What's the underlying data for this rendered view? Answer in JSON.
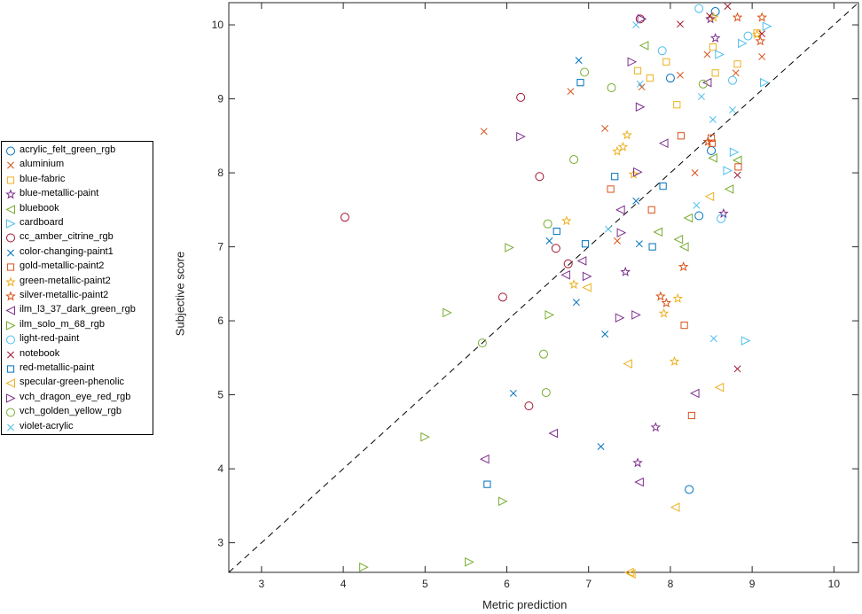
{
  "chart_data": {
    "type": "scatter",
    "xlabel": "Metric prediction",
    "ylabel": "Subjective score",
    "xlim": [
      2.6,
      10.3
    ],
    "ylim": [
      2.6,
      10.3
    ],
    "xticks": [
      "3",
      "4",
      "5",
      "6",
      "7",
      "8",
      "9",
      "10"
    ],
    "yticks": [
      "3",
      "4",
      "5",
      "6",
      "7",
      "8",
      "9",
      "10"
    ],
    "reference_line": "identity (dashed)",
    "legend_position": "left",
    "grid": false,
    "series": [
      {
        "name": "acrylic_felt_green_rgb",
        "marker": "circle",
        "color": "#0072BD",
        "x": [
          8.55,
          8.35,
          8.5,
          8.23,
          8.0
        ],
        "y": [
          10.18,
          7.42,
          8.3,
          3.72,
          9.28
        ]
      },
      {
        "name": "aluminium",
        "marker": "x",
        "color": "#D95319",
        "x": [
          5.72,
          6.78,
          7.2,
          7.35,
          7.65,
          8.12,
          8.3,
          8.8,
          8.45,
          9.12
        ],
        "y": [
          8.56,
          9.1,
          8.6,
          7.08,
          9.16,
          9.32,
          8.0,
          9.35,
          9.6,
          9.57
        ]
      },
      {
        "name": "blue-fabric",
        "marker": "square",
        "color": "#EDB120",
        "x": [
          7.6,
          7.75,
          7.95,
          8.08,
          8.52,
          8.55,
          8.82,
          9.06
        ],
        "y": [
          9.38,
          9.28,
          9.5,
          8.92,
          9.7,
          9.35,
          9.47,
          9.89
        ]
      },
      {
        "name": "blue-metallic-paint",
        "marker": "star",
        "color": "#7E2F8E",
        "x": [
          7.45,
          7.6,
          7.82,
          8.65,
          8.49,
          8.55
        ],
        "y": [
          6.66,
          4.08,
          4.56,
          7.45,
          10.08,
          9.82
        ]
      },
      {
        "name": "bluebook",
        "marker": "triangle-left",
        "color": "#77AC30",
        "x": [
          7.68,
          7.85,
          8.1,
          8.17,
          8.22,
          8.52,
          8.72,
          8.82
        ],
        "y": [
          9.72,
          7.2,
          7.1,
          7.0,
          7.39,
          8.2,
          7.78,
          8.17
        ]
      },
      {
        "name": "cardboard",
        "marker": "triangle-right",
        "color": "#4DBEEE",
        "x": [
          8.6,
          8.78,
          8.92,
          8.7,
          9.15,
          8.88,
          9.18
        ],
        "y": [
          9.6,
          8.28,
          5.73,
          8.03,
          9.22,
          9.75,
          9.98
        ]
      },
      {
        "name": "cc_amber_citrine_rgb",
        "marker": "circle",
        "color": "#A2142F",
        "x": [
          4.02,
          6.17,
          6.4,
          5.95,
          6.27,
          6.6,
          6.75,
          7.63
        ],
        "y": [
          7.4,
          9.02,
          7.95,
          6.32,
          4.85,
          6.98,
          6.77,
          10.08
        ]
      },
      {
        "name": "color-changing-paint1",
        "marker": "x",
        "color": "#0072BD",
        "x": [
          6.88,
          6.52,
          6.85,
          6.08,
          7.2,
          7.15,
          7.58,
          7.62
        ],
        "y": [
          9.52,
          7.08,
          6.25,
          5.02,
          5.82,
          4.3,
          7.62,
          7.04
        ]
      },
      {
        "name": "gold-metallic-paint2",
        "marker": "square",
        "color": "#D95319",
        "x": [
          7.27,
          7.77,
          8.13,
          8.17,
          8.26,
          8.5,
          8.51,
          8.83
        ],
        "y": [
          7.78,
          7.5,
          8.5,
          5.94,
          4.72,
          8.47,
          8.4,
          8.08
        ]
      },
      {
        "name": "green-metallic-paint2",
        "marker": "star",
        "color": "#EDB120",
        "x": [
          6.73,
          6.82,
          7.35,
          7.42,
          7.47,
          7.55,
          7.92,
          8.05,
          8.09,
          8.53,
          9.06
        ],
        "y": [
          7.35,
          6.49,
          8.29,
          8.35,
          8.51,
          7.98,
          6.1,
          5.45,
          6.3,
          10.1,
          9.87
        ]
      },
      {
        "name": "silver-metallic-paint2",
        "marker": "star",
        "color": "#D95319",
        "x": [
          7.88,
          7.95,
          8.16,
          8.46,
          8.82,
          9.12,
          9.1
        ],
        "y": [
          6.33,
          6.24,
          6.73,
          8.42,
          10.1,
          10.1,
          9.78
        ]
      },
      {
        "name": "ilm_l3_37_dark_green_rgb",
        "marker": "triangle-left",
        "color": "#7E2F8E",
        "x": [
          5.73,
          6.57,
          6.72,
          6.92,
          7.39,
          7.62,
          7.92,
          8.3,
          8.45
        ],
        "y": [
          4.13,
          4.48,
          6.62,
          6.81,
          7.5,
          3.82,
          8.4,
          5.02,
          9.22
        ]
      },
      {
        "name": "ilm_solo_m_68_rgb",
        "marker": "triangle-right",
        "color": "#77AC30",
        "x": [
          4.25,
          5.0,
          5.27,
          5.54,
          5.95,
          6.03,
          6.52
        ],
        "y": [
          2.67,
          4.43,
          6.11,
          2.74,
          3.56,
          6.99,
          6.08
        ]
      },
      {
        "name": "light-red-paint",
        "marker": "circle",
        "color": "#4DBEEE",
        "x": [
          7.9,
          8.35,
          8.62,
          8.76,
          8.95
        ],
        "y": [
          9.65,
          10.22,
          7.38,
          9.25,
          9.85
        ]
      },
      {
        "name": "notebook",
        "marker": "x",
        "color": "#A2142F",
        "x": [
          8.12,
          8.48,
          8.7,
          8.82,
          8.82,
          9.12
        ],
        "y": [
          10.01,
          10.12,
          10.25,
          5.35,
          7.97,
          9.88
        ]
      },
      {
        "name": "red-metallic-paint",
        "marker": "square",
        "color": "#0072BD",
        "x": [
          5.76,
          6.61,
          6.9,
          6.96,
          7.32,
          7.78,
          7.91
        ],
        "y": [
          3.79,
          7.21,
          9.22,
          7.04,
          7.95,
          7.0,
          7.82
        ]
      },
      {
        "name": "specular-green-phenolic",
        "marker": "triangle-left",
        "color": "#EDB120",
        "x": [
          6.98,
          7.48,
          7.5,
          7.52,
          8.06,
          8.48,
          8.6
        ],
        "y": [
          6.45,
          5.42,
          2.6,
          2.58,
          3.48,
          7.68,
          5.1
        ]
      },
      {
        "name": "vch_dragon_eye_red_rgb",
        "marker": "triangle-right",
        "color": "#7E2F8E",
        "x": [
          6.17,
          6.98,
          7.38,
          7.4,
          7.53,
          7.58,
          7.6,
          7.63,
          7.65
        ],
        "y": [
          8.49,
          6.6,
          6.04,
          7.19,
          9.5,
          6.08,
          8.01,
          8.89,
          10.08
        ]
      },
      {
        "name": "vch_golden_yellow_rgb",
        "marker": "circle",
        "color": "#77AC30",
        "x": [
          5.7,
          6.45,
          6.5,
          6.48,
          6.95,
          7.28,
          6.82,
          8.4
        ],
        "y": [
          5.7,
          5.55,
          7.31,
          5.03,
          9.36,
          9.15,
          8.18,
          9.2
        ]
      },
      {
        "name": "violet-acrylic",
        "marker": "x",
        "color": "#4DBEEE",
        "x": [
          7.24,
          7.58,
          7.63,
          8.32,
          8.38,
          8.52,
          8.53,
          8.76
        ],
        "y": [
          7.24,
          10.0,
          9.2,
          7.56,
          9.03,
          8.72,
          5.76,
          8.85
        ]
      }
    ]
  }
}
